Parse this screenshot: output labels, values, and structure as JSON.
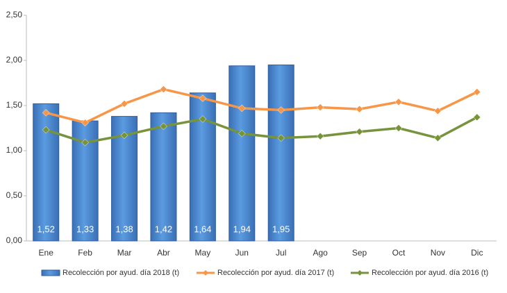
{
  "chart_data": {
    "type": "bar_line",
    "categories": [
      "Ene",
      "Feb",
      "Mar",
      "Abr",
      "May",
      "Jun",
      "Jul",
      "Ago",
      "Sep",
      "Oct",
      "Nov",
      "Dic"
    ],
    "series": [
      {
        "name": "Recolección por ayud. día 2018 (t)",
        "type": "bar",
        "color": "#4a86d0",
        "values": [
          1.52,
          1.33,
          1.38,
          1.42,
          1.64,
          1.94,
          1.95,
          null,
          null,
          null,
          null,
          null
        ],
        "value_labels": [
          "1,52",
          "1,33",
          "1,38",
          "1,42",
          "1,64",
          "1,94",
          "1,95",
          null,
          null,
          null,
          null,
          null
        ]
      },
      {
        "name": "Recolección por ayud. día 2017 (t)",
        "type": "line",
        "color": "#f79646",
        "values": [
          1.42,
          1.31,
          1.52,
          1.68,
          1.58,
          1.47,
          1.45,
          1.48,
          1.46,
          1.54,
          1.44,
          1.65
        ]
      },
      {
        "name": "Recolección por ayud. día 2016 (t)",
        "type": "line",
        "color": "#77933c",
        "values": [
          1.23,
          1.09,
          1.17,
          1.27,
          1.35,
          1.19,
          1.14,
          1.16,
          1.21,
          1.25,
          1.14,
          1.37
        ]
      }
    ],
    "ylim": [
      0,
      2.5
    ],
    "yticks": [
      {
        "value": 0,
        "label": "0,00"
      },
      {
        "value": 0.5,
        "label": "0,50"
      },
      {
        "value": 1,
        "label": "1,00"
      },
      {
        "value": 1.5,
        "label": "1,50"
      },
      {
        "value": 2,
        "label": "2,00"
      },
      {
        "value": 2.5,
        "label": "2,50"
      }
    ],
    "legend": "bottom"
  }
}
